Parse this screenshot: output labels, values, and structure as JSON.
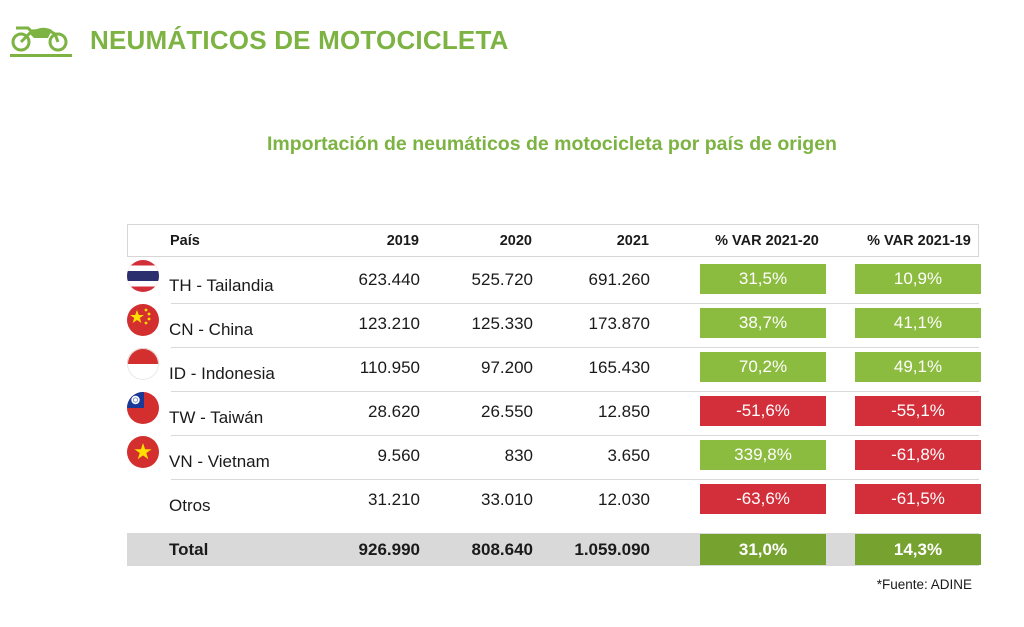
{
  "page_title": "NEUMÁTICOS DE MOTOCICLETA",
  "subtitle": "Importación de neumáticos de motocicleta por país de origen",
  "colors": {
    "accent_green": "#7cb342",
    "positive": "#8cbc3f",
    "negative": "#d32f3a",
    "total_badge": "#76a230",
    "total_row": "#d9d9d9"
  },
  "table": {
    "headers": {
      "country": "País",
      "y2019": "2019",
      "y2020": "2020",
      "y2021": "2021",
      "var_21_20": "% VAR 2021-20",
      "var_21_19": "% VAR 2021-19"
    },
    "rows": [
      {
        "country": "TH - Tailandia",
        "flag": "thailand-flag",
        "y2019": "623.440",
        "y2020": "525.720",
        "y2021": "691.260",
        "var_21_20": "31,5%",
        "var_21_19": "10,9%"
      },
      {
        "country": "CN - China",
        "flag": "china-flag",
        "y2019": "123.210",
        "y2020": "125.330",
        "y2021": "173.870",
        "var_21_20": "38,7%",
        "var_21_19": "41,1%"
      },
      {
        "country": "ID - Indonesia",
        "flag": "indonesia-flag",
        "y2019": "110.950",
        "y2020": "97.200",
        "y2021": "165.430",
        "var_21_20": "70,2%",
        "var_21_19": "49,1%"
      },
      {
        "country": "TW - Taiwán",
        "flag": "taiwan-flag",
        "y2019": "28.620",
        "y2020": "26.550",
        "y2021": "12.850",
        "var_21_20": "-51,6%",
        "var_21_19": "-55,1%"
      },
      {
        "country": "VN - Vietnam",
        "flag": "vietnam-flag",
        "y2019": "9.560",
        "y2020": "830",
        "y2021": "3.650",
        "var_21_20": "339,8%",
        "var_21_19": "-61,8%"
      },
      {
        "country": "Otros",
        "flag": "",
        "y2019": "31.210",
        "y2020": "33.010",
        "y2021": "12.030",
        "var_21_20": "-63,6%",
        "var_21_19": "-61,5%"
      }
    ],
    "total": {
      "country": "Total",
      "y2019": "926.990",
      "y2020": "808.640",
      "y2021": "1.059.090",
      "var_21_20": "31,0%",
      "var_21_19": "14,3%"
    }
  },
  "footnote": "*Fuente: ADINE"
}
